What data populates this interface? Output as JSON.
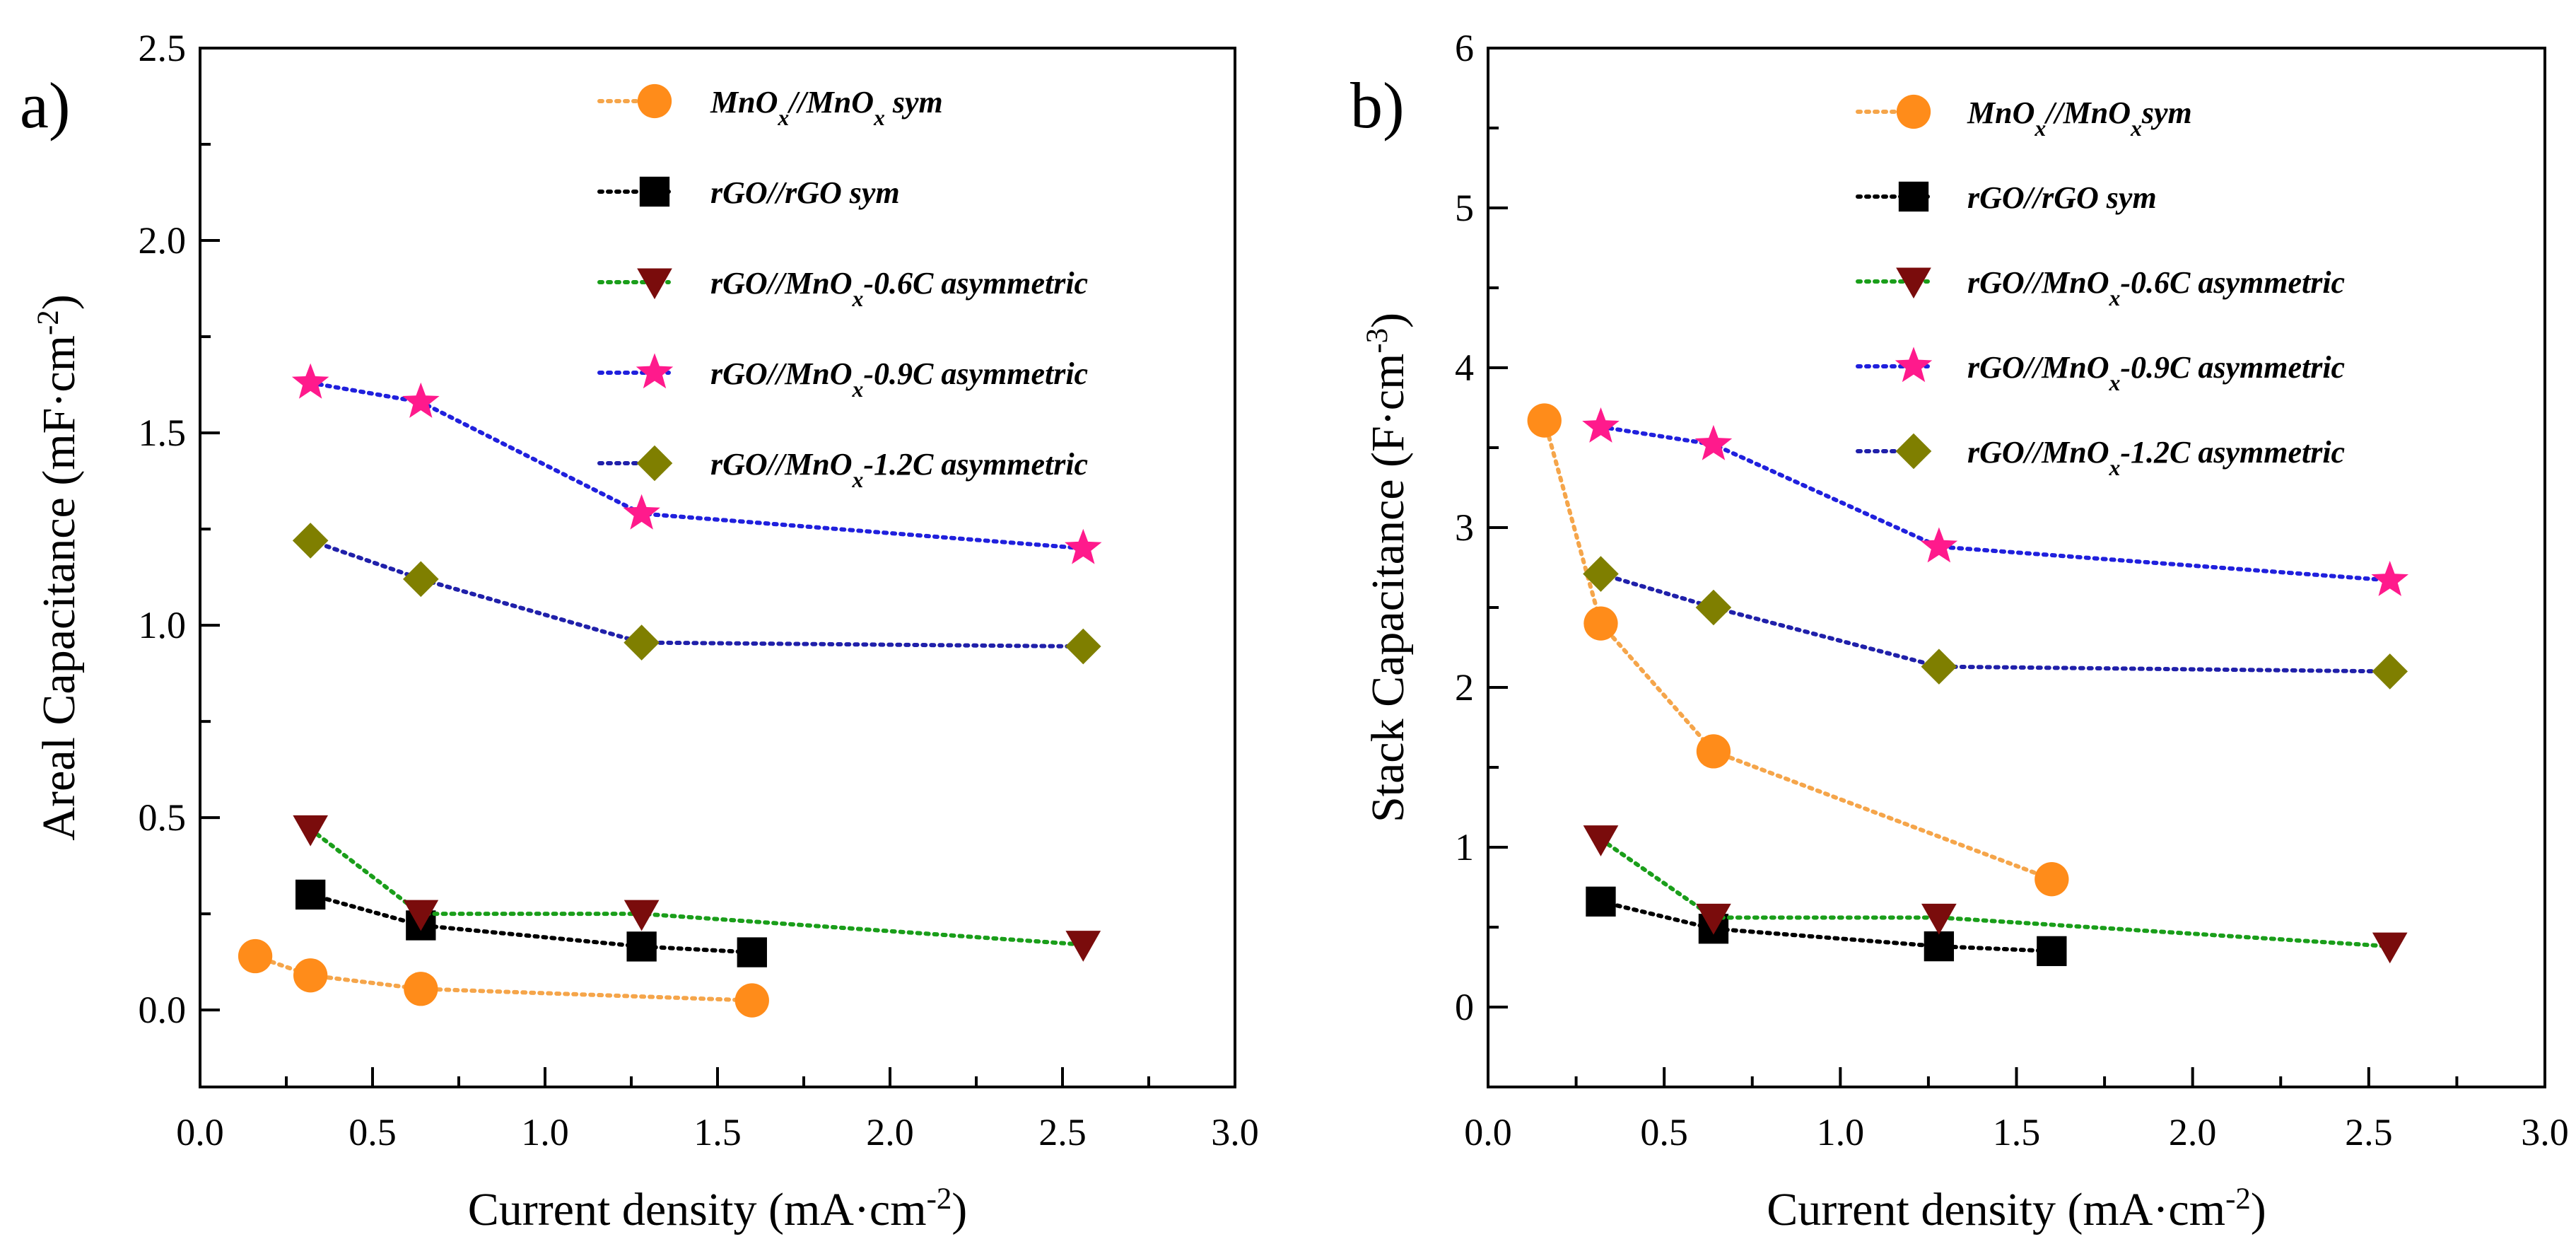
{
  "chart_data": [
    {
      "type": "line",
      "panel_label": "a)",
      "xlabel": "Current density (mA·cm",
      "xlabel_sup": "-2",
      "xlabel_end": ")",
      "ylabel": "Areal Capacitance (mF·cm",
      "ylabel_sup": "-2",
      "ylabel_end": ")",
      "xlim": [
        0,
        3.0
      ],
      "ylim": [
        -0.2,
        2.5
      ],
      "xticks": [
        "0.0",
        "0.5",
        "1.0",
        "1.5",
        "2.0",
        "2.5",
        "3.0"
      ],
      "yticks": [
        "0.0",
        "0.5",
        "1.0",
        "1.5",
        "2.0",
        "2.5"
      ],
      "grid": false,
      "legend_position": "top-right",
      "series": [
        {
          "name": "MnOx//MnOx sym",
          "legend": [
            [
              "MnO",
              ""
            ],
            [
              "x",
              "sub"
            ],
            [
              "//MnO",
              ""
            ],
            [
              "x",
              "sub"
            ],
            [
              " sym",
              ""
            ]
          ],
          "color": "#ff8c1a",
          "line": "#f5a54a",
          "marker": "circle",
          "x": [
            0.16,
            0.32,
            0.64,
            1.6
          ],
          "y": [
            0.14,
            0.09,
            0.055,
            0.025
          ]
        },
        {
          "name": "rGO//rGO sym",
          "legend": [
            [
              "rGO//rGO sym",
              ""
            ]
          ],
          "color": "#000000",
          "line": "#000000",
          "marker": "square",
          "x": [
            0.32,
            0.64,
            1.28,
            1.6
          ],
          "y": [
            0.3,
            0.22,
            0.165,
            0.15
          ]
        },
        {
          "name": "rGO//MnOx-0.6C asymmetric",
          "legend": [
            [
              "rGO//MnO",
              ""
            ],
            [
              "x",
              "sub"
            ],
            [
              "-0.6C asymmetric",
              ""
            ]
          ],
          "color": "#7a0c0c",
          "line": "#1a9e1a",
          "marker": "triangle-down",
          "x": [
            0.32,
            0.64,
            1.28,
            2.56
          ],
          "y": [
            0.47,
            0.25,
            0.25,
            0.17
          ]
        },
        {
          "name": "rGO//MnOx-0.9C asymmetric",
          "legend": [
            [
              "rGO//MnO",
              ""
            ],
            [
              "x",
              "sub"
            ],
            [
              "-0.9C asymmetric",
              ""
            ]
          ],
          "color": "#ff1a8c",
          "line": "#2020dd",
          "marker": "star",
          "x": [
            0.32,
            0.64,
            1.28,
            2.56
          ],
          "y": [
            1.63,
            1.58,
            1.29,
            1.2
          ]
        },
        {
          "name": "rGO//MnOx-1.2C asymmetric",
          "legend": [
            [
              "rGO//MnO",
              ""
            ],
            [
              "x",
              "sub"
            ],
            [
              "-1.2C asymmetric",
              ""
            ]
          ],
          "color": "#7f7f00",
          "line": "#2020aa",
          "marker": "diamond",
          "x": [
            0.32,
            0.64,
            1.28,
            2.56
          ],
          "y": [
            1.22,
            1.12,
            0.955,
            0.945
          ]
        }
      ]
    },
    {
      "type": "line",
      "panel_label": "b)",
      "xlabel": "Current density (mA·cm",
      "xlabel_sup": "-2",
      "xlabel_end": ")",
      "ylabel": "Stack Capacitance (F·cm",
      "ylabel_sup": "-3",
      "ylabel_end": ")",
      "xlim": [
        0,
        3.0
      ],
      "ylim": [
        -0.5,
        6
      ],
      "xticks": [
        "0.0",
        "0.5",
        "1.0",
        "1.5",
        "2.0",
        "2.5",
        "3.0"
      ],
      "yticks": [
        "0",
        "1",
        "2",
        "3",
        "4",
        "5",
        "6"
      ],
      "grid": false,
      "legend_position": "top-right",
      "series": [
        {
          "name": "MnOx//MnOx sym",
          "legend": [
            [
              "MnO",
              ""
            ],
            [
              "x",
              "sub"
            ],
            [
              "//MnO",
              ""
            ],
            [
              "x",
              "sub"
            ],
            [
              "sym",
              ""
            ]
          ],
          "color": "#ff8c1a",
          "line": "#f5a54a",
          "marker": "circle",
          "x": [
            0.16,
            0.32,
            0.64,
            1.6
          ],
          "y": [
            3.67,
            2.4,
            1.6,
            0.8
          ]
        },
        {
          "name": "rGO//rGO sym",
          "legend": [
            [
              "rGO//rGO sym",
              ""
            ]
          ],
          "color": "#000000",
          "line": "#000000",
          "marker": "square",
          "x": [
            0.32,
            0.64,
            1.28,
            1.6
          ],
          "y": [
            0.66,
            0.49,
            0.38,
            0.35
          ]
        },
        {
          "name": "rGO//MnOx-0.6C asymmetric",
          "legend": [
            [
              "rGO//MnO",
              ""
            ],
            [
              "x",
              "sub"
            ],
            [
              "-0.6C asymmetric",
              ""
            ]
          ],
          "color": "#7a0c0c",
          "line": "#1a9e1a",
          "marker": "triangle-down",
          "x": [
            0.32,
            0.64,
            1.28,
            2.56
          ],
          "y": [
            1.05,
            0.56,
            0.56,
            0.38
          ]
        },
        {
          "name": "rGO//MnOx-0.9C asymmetric",
          "legend": [
            [
              "rGO//MnO",
              ""
            ],
            [
              "x",
              "sub"
            ],
            [
              "-0.9C asymmetric",
              ""
            ]
          ],
          "color": "#ff1a8c",
          "line": "#2020dd",
          "marker": "star",
          "x": [
            0.32,
            0.64,
            1.28,
            2.56
          ],
          "y": [
            3.63,
            3.52,
            2.88,
            2.67
          ]
        },
        {
          "name": "rGO//MnOx-1.2C asymmetric",
          "legend": [
            [
              "rGO//MnO",
              ""
            ],
            [
              "x",
              "sub"
            ],
            [
              "-1.2C asymmetric",
              ""
            ]
          ],
          "color": "#7f7f00",
          "line": "#2020aa",
          "marker": "diamond",
          "x": [
            0.32,
            0.64,
            1.28,
            2.56
          ],
          "y": [
            2.71,
            2.5,
            2.13,
            2.1
          ]
        }
      ]
    }
  ]
}
